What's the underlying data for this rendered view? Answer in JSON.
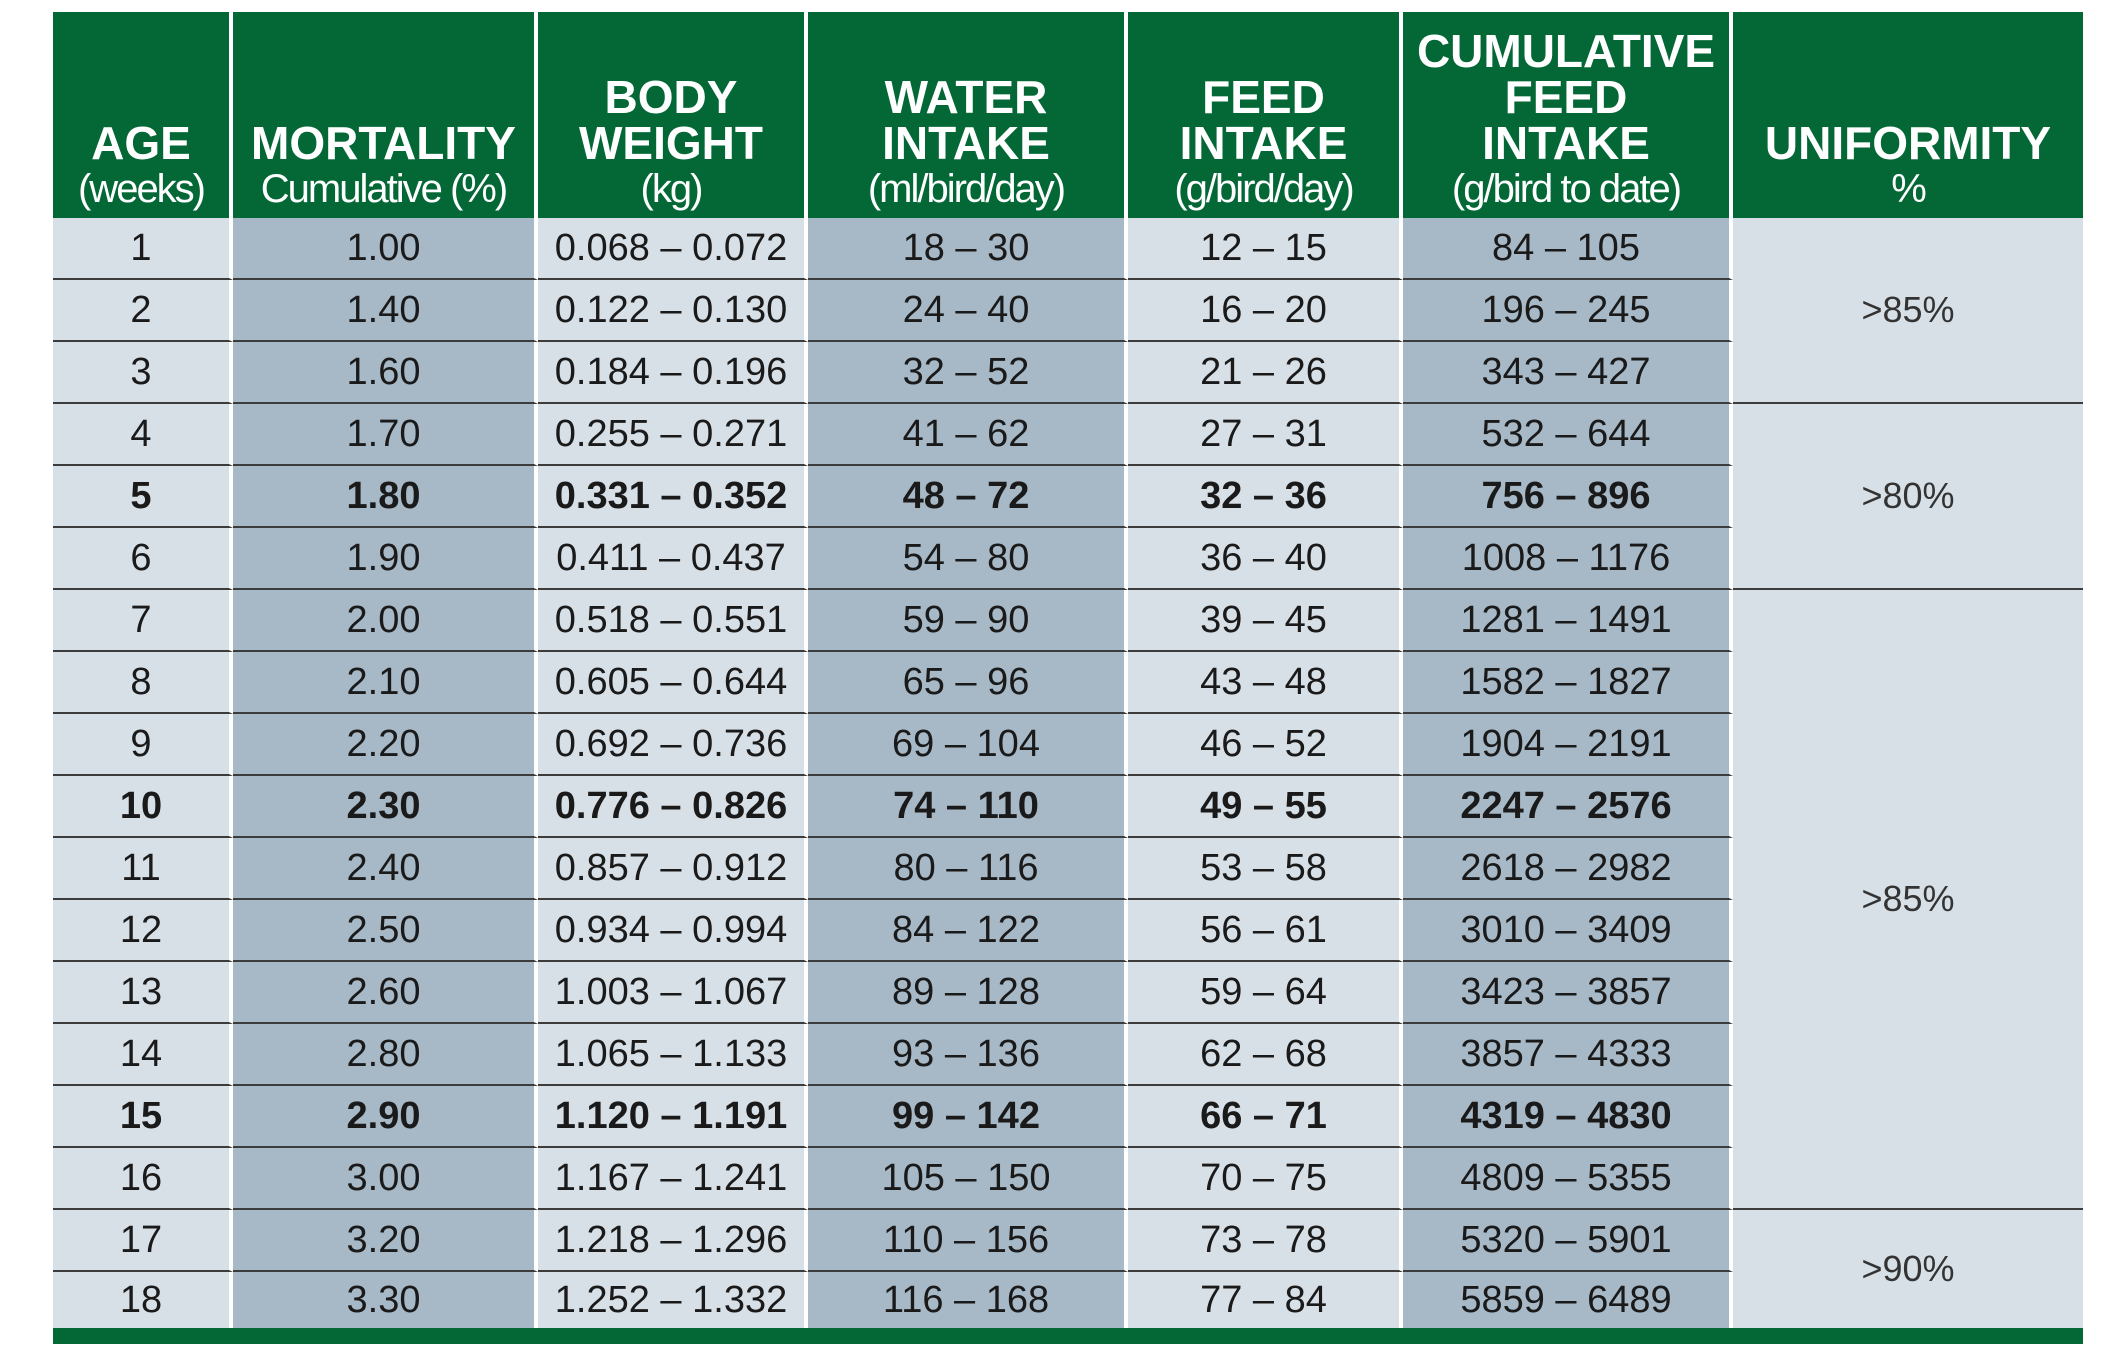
{
  "headers": [
    {
      "bold": "AGE",
      "sub": "(weeks)"
    },
    {
      "bold": "MORTALITY",
      "sub": "Cumulative (%)"
    },
    {
      "bold": "BODY\nWEIGHT",
      "sub": "(kg)"
    },
    {
      "bold": "WATER\nINTAKE",
      "sub": "(ml/bird/day)"
    },
    {
      "bold": "FEED\nINTAKE",
      "sub": "(g/bird/day)"
    },
    {
      "bold": "CUMULATIVE\nFEED\nINTAKE",
      "sub": "(g/bird to date)"
    },
    {
      "bold": "UNIFORMITY",
      "sub": "%"
    }
  ],
  "rows": [
    {
      "age": "1",
      "mortality": "1.00",
      "body_weight": "0.068 – 0.072",
      "water": "18 – 30",
      "feed": "12 – 15",
      "cum_feed": "84 – 105",
      "bold": false
    },
    {
      "age": "2",
      "mortality": "1.40",
      "body_weight": "0.122 – 0.130",
      "water": "24 – 40",
      "feed": "16 – 20",
      "cum_feed": "196 – 245",
      "bold": false
    },
    {
      "age": "3",
      "mortality": "1.60",
      "body_weight": "0.184 – 0.196",
      "water": "32 – 52",
      "feed": "21 – 26",
      "cum_feed": "343 – 427",
      "bold": false
    },
    {
      "age": "4",
      "mortality": "1.70",
      "body_weight": "0.255 – 0.271",
      "water": "41 – 62",
      "feed": "27 – 31",
      "cum_feed": "532 – 644",
      "bold": false
    },
    {
      "age": "5",
      "mortality": "1.80",
      "body_weight": "0.331 – 0.352",
      "water": "48 – 72",
      "feed": "32 – 36",
      "cum_feed": "756 – 896",
      "bold": true
    },
    {
      "age": "6",
      "mortality": "1.90",
      "body_weight": "0.411 – 0.437",
      "water": "54 – 80",
      "feed": "36 – 40",
      "cum_feed": "1008 – 1176",
      "bold": false
    },
    {
      "age": "7",
      "mortality": "2.00",
      "body_weight": "0.518 – 0.551",
      "water": "59 – 90",
      "feed": "39 – 45",
      "cum_feed": "1281 – 1491",
      "bold": false
    },
    {
      "age": "8",
      "mortality": "2.10",
      "body_weight": "0.605 – 0.644",
      "water": "65 – 96",
      "feed": "43 – 48",
      "cum_feed": "1582 – 1827",
      "bold": false
    },
    {
      "age": "9",
      "mortality": "2.20",
      "body_weight": "0.692 – 0.736",
      "water": "69 – 104",
      "feed": "46 – 52",
      "cum_feed": "1904 – 2191",
      "bold": false
    },
    {
      "age": "10",
      "mortality": "2.30",
      "body_weight": "0.776 – 0.826",
      "water": "74 – 110",
      "feed": "49 – 55",
      "cum_feed": "2247 – 2576",
      "bold": true
    },
    {
      "age": "11",
      "mortality": "2.40",
      "body_weight": "0.857 – 0.912",
      "water": "80 – 116",
      "feed": "53 – 58",
      "cum_feed": "2618 – 2982",
      "bold": false
    },
    {
      "age": "12",
      "mortality": "2.50",
      "body_weight": "0.934 – 0.994",
      "water": "84 – 122",
      "feed": "56 – 61",
      "cum_feed": "3010 – 3409",
      "bold": false
    },
    {
      "age": "13",
      "mortality": "2.60",
      "body_weight": "1.003 – 1.067",
      "water": "89 – 128",
      "feed": "59 – 64",
      "cum_feed": "3423 – 3857",
      "bold": false
    },
    {
      "age": "14",
      "mortality": "2.80",
      "body_weight": "1.065 – 1.133",
      "water": "93 – 136",
      "feed": "62 – 68",
      "cum_feed": "3857 – 4333",
      "bold": false
    },
    {
      "age": "15",
      "mortality": "2.90",
      "body_weight": "1.120 – 1.191",
      "water": "99 – 142",
      "feed": "66 – 71",
      "cum_feed": "4319 – 4830",
      "bold": true
    },
    {
      "age": "16",
      "mortality": "3.00",
      "body_weight": "1.167 – 1.241",
      "water": "105 – 150",
      "feed": "70 – 75",
      "cum_feed": "4809 – 5355",
      "bold": false
    },
    {
      "age": "17",
      "mortality": "3.20",
      "body_weight": "1.218 – 1.296",
      "water": "110 – 156",
      "feed": "73 – 78",
      "cum_feed": "5320 – 5901",
      "bold": false
    },
    {
      "age": "18",
      "mortality": "3.30",
      "body_weight": "1.252 – 1.332",
      "water": "116 – 168",
      "feed": "77 – 84",
      "cum_feed": "5859 – 6489",
      "bold": false
    }
  ],
  "uniformity": [
    {
      "value": ">85%",
      "rowspan": 3
    },
    {
      "value": ">80%",
      "rowspan": 3
    },
    {
      "value": ">85%",
      "rowspan": 10
    },
    {
      "value": ">90%",
      "rowspan": 2
    }
  ],
  "colors": {
    "header_green": "#036836",
    "light_cell": "#d8e0e7",
    "dark_cell": "#a7b9c7"
  }
}
